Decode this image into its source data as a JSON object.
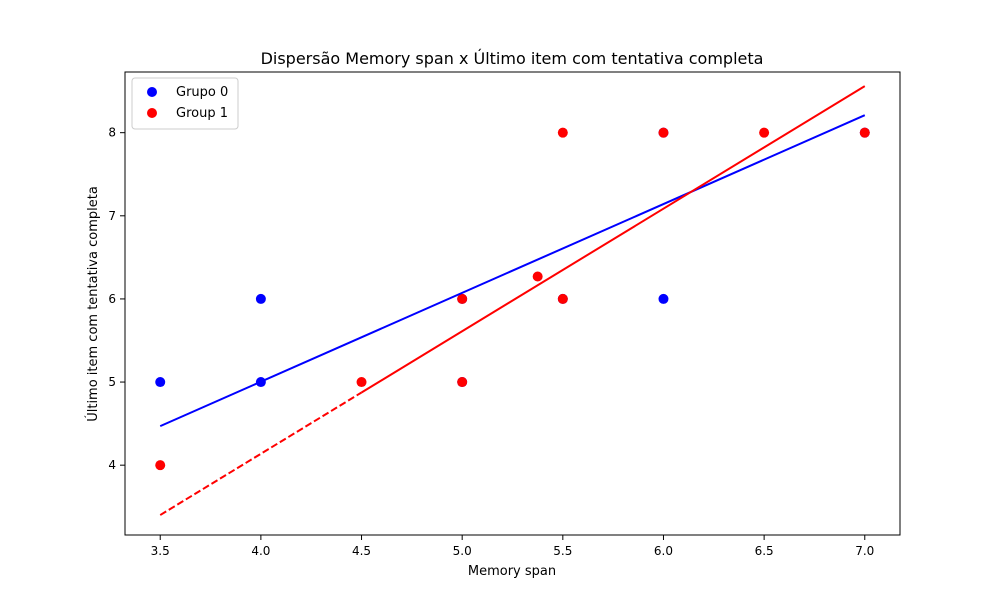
{
  "chart_data": {
    "type": "scatter",
    "title": "Dispersão Memory span x Último item com tentativa completa",
    "xlabel": "Memory span",
    "ylabel": "Último item com tentativa completa",
    "xlim": [
      3.325,
      7.175
    ],
    "ylim": [
      3.16,
      8.73
    ],
    "xticks": [
      3.5,
      4.0,
      4.5,
      5.0,
      5.5,
      6.0,
      6.5,
      7.0
    ],
    "xtick_labels": [
      "3.5",
      "4.0",
      "4.5",
      "5.0",
      "5.5",
      "6.0",
      "6.5",
      "7.0"
    ],
    "yticks": [
      4,
      5,
      6,
      7,
      8
    ],
    "ytick_labels": [
      "4",
      "5",
      "6",
      "7",
      "8"
    ],
    "grid": false,
    "legend_position": "top-left",
    "series": [
      {
        "name": "Grupo 0",
        "color": "#0000ff",
        "points": [
          [
            3.5,
            5
          ],
          [
            4.0,
            6
          ],
          [
            4.0,
            5
          ],
          [
            5.0,
            6
          ],
          [
            5.0,
            5
          ],
          [
            5.5,
            6
          ],
          [
            6.0,
            8
          ],
          [
            6.0,
            6
          ],
          [
            7.0,
            8
          ]
        ],
        "fit_line": {
          "x": [
            3.5,
            7.0
          ],
          "y": [
            4.47,
            8.21
          ],
          "style": "solid"
        }
      },
      {
        "name": "Group 1",
        "color": "#ff0000",
        "points": [
          [
            3.5,
            4
          ],
          [
            4.5,
            5
          ],
          [
            5.0,
            6
          ],
          [
            5.0,
            5
          ],
          [
            5.375,
            6.27
          ],
          [
            5.5,
            8
          ],
          [
            5.5,
            6
          ],
          [
            6.0,
            8
          ],
          [
            6.5,
            8
          ],
          [
            7.0,
            8
          ]
        ],
        "fit_line": {
          "x": [
            3.5,
            7.0
          ],
          "y": [
            3.4,
            8.56
          ],
          "style": "dashed-then-solid",
          "dash_until_x": 4.5
        }
      }
    ]
  }
}
